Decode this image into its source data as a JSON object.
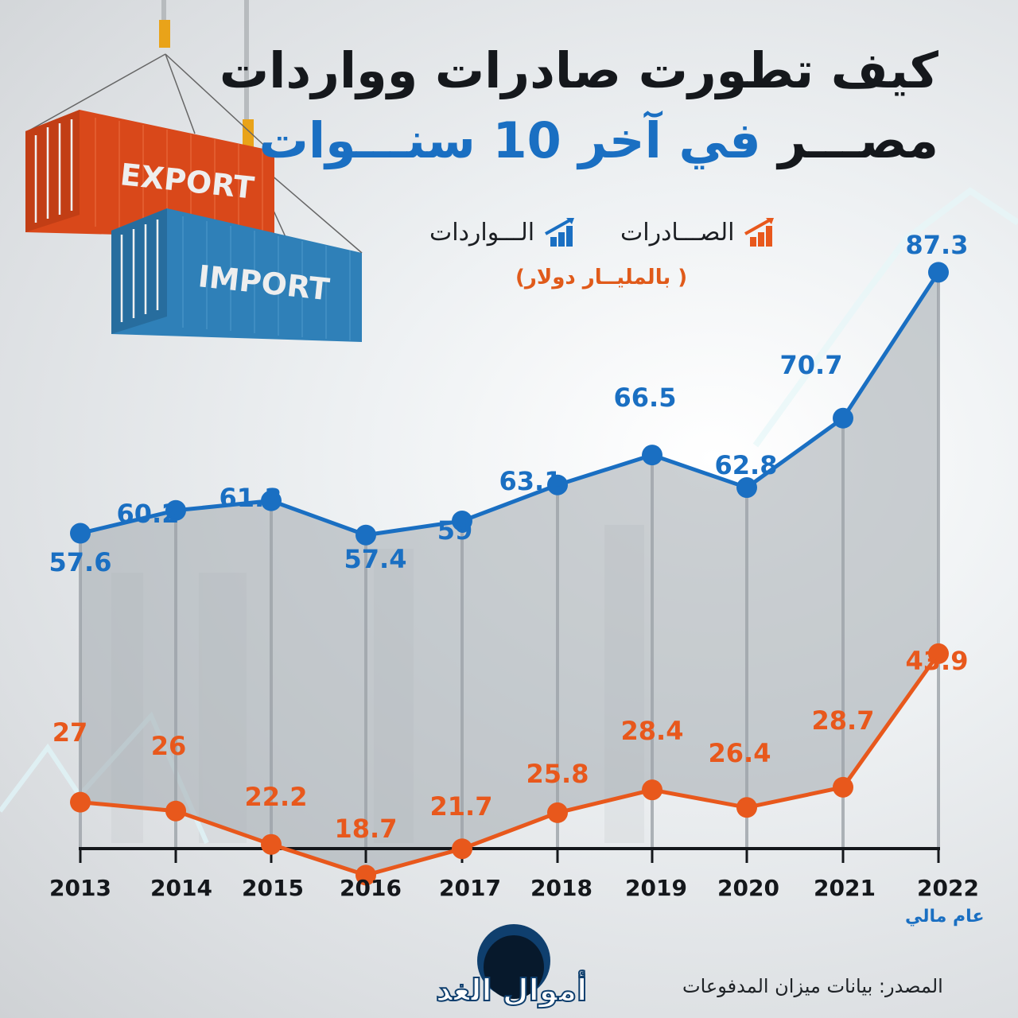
{
  "header": {
    "title_line1": "كيف تطورت صادرات وواردات",
    "title_line2_part1": "مصـــر",
    "title_line2_highlight": "في آخر 10 سنـــوات"
  },
  "legend": {
    "exports_label": "الصـــادرات",
    "imports_label": "الـــواردات",
    "unit": "( بالمليــار دولار)"
  },
  "illustration": {
    "export_container_text": "EXPORT",
    "import_container_text": "IMPORT"
  },
  "colors": {
    "imports": "#1a6fc2",
    "exports": "#e8581c",
    "fill": "#a9aeb3",
    "axis": "#14171b"
  },
  "footer": {
    "fiscal_year_label": "عام مالي",
    "source": "المصدر: بيانات ميزان المدفوعات",
    "logo_text": "أموال الغد"
  },
  "chart_data": {
    "type": "line",
    "title": "كيف تطورت صادرات وواردات مصر في آخر 10 سنوات",
    "xlabel": "عام مالي",
    "ylabel": "بالمليار دولار",
    "categories": [
      "2013",
      "2014",
      "2015",
      "2016",
      "2017",
      "2018",
      "2019",
      "2020",
      "2021",
      "2022"
    ],
    "series": [
      {
        "name": "الـــواردات",
        "color": "#1a6fc2",
        "values": [
          57.6,
          60.2,
          61.3,
          57.4,
          59,
          63.1,
          66.5,
          62.8,
          70.7,
          87.3
        ]
      },
      {
        "name": "الصـــادرات",
        "color": "#e8581c",
        "values": [
          27,
          26,
          22.2,
          18.7,
          21.7,
          25.8,
          28.4,
          26.4,
          28.7,
          43.9
        ]
      }
    ],
    "labels": {
      "imports": [
        "57.6",
        "60.2",
        "61.3",
        "57.4",
        "59",
        "63.1",
        "66.5",
        "62.8",
        "70.7",
        "87.3"
      ],
      "exports": [
        "27",
        "26",
        "22.2",
        "18.7",
        "21.7",
        "25.8",
        "28.4",
        "26.4",
        "28.7",
        "43.9"
      ]
    },
    "grid": false,
    "legend_position": "top"
  }
}
